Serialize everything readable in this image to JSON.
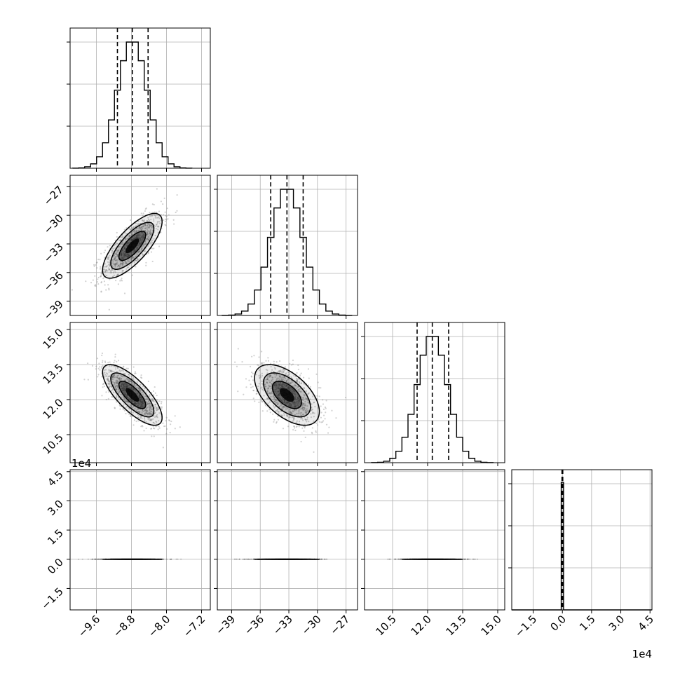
{
  "chart_data": {
    "type": "corner",
    "grid": true,
    "quantile_lines": "dashed",
    "variables": [
      {
        "range": [
          -10.2,
          -7.0
        ],
        "ticks": [
          -9.6,
          -8.8,
          -8.0,
          -7.2
        ],
        "tick_labels": [
          "−9.6",
          "−8.8",
          "−8.0",
          "−7.2"
        ],
        "quantiles": [
          -9.12,
          -8.78,
          -8.42
        ],
        "mean": -8.78,
        "sd": 0.34
      },
      {
        "range": [
          -40.5,
          -25.8
        ],
        "ticks": [
          -39,
          -36,
          -33,
          -30,
          -27
        ],
        "tick_labels": [
          "−39",
          "−36",
          "−33",
          "−30",
          "−27"
        ],
        "quantiles": [
          -34.9,
          -33.2,
          -31.5
        ],
        "mean": -33.2,
        "sd": 1.7
      },
      {
        "range": [
          9.3,
          15.3
        ],
        "ticks": [
          10.5,
          12.0,
          13.5,
          15.0
        ],
        "tick_labels": [
          "10.5",
          "12.0",
          "13.5",
          "15.0"
        ],
        "quantiles": [
          11.55,
          12.2,
          12.9
        ],
        "mean": 12.2,
        "sd": 0.65
      },
      {
        "range": [
          -2.6,
          4.6
        ],
        "ticks": [
          -1.5,
          0.0,
          1.5,
          3.0,
          4.5
        ],
        "tick_labels": [
          "−1.5",
          "0.0",
          "1.5",
          "3.0",
          "4.5"
        ],
        "quantiles": [
          -0.02,
          0.0,
          0.02
        ],
        "mean": 0.0,
        "sd": 0.02,
        "scale_label": "1e4"
      }
    ],
    "correlations": [
      [
        0,
        1,
        0.75
      ],
      [
        0,
        2,
        -0.75
      ],
      [
        1,
        2,
        -0.55
      ],
      [
        0,
        3,
        0.0
      ],
      [
        1,
        3,
        0.0
      ],
      [
        2,
        3,
        0.0
      ]
    ],
    "histogram_bins": 20,
    "scatter_points_per_panel": 1000,
    "colors": {
      "hist": "#000000",
      "scatter": "#7f7f7f",
      "grid": "#b0b0b0",
      "contour": "#000000"
    }
  }
}
